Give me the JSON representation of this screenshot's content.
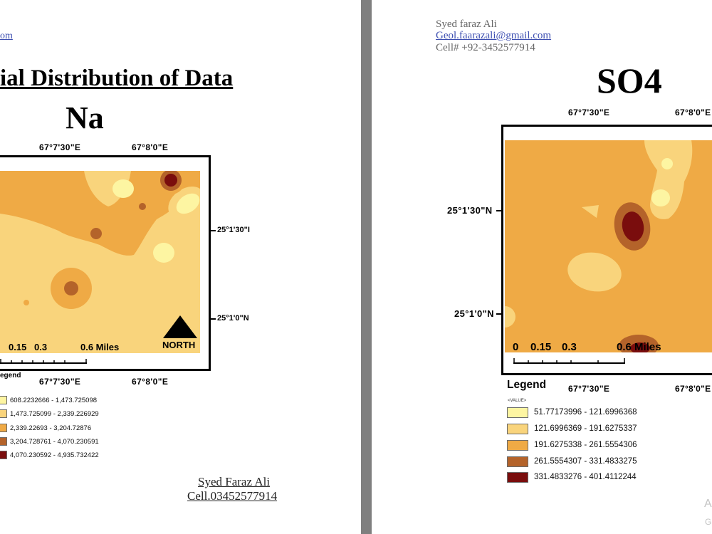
{
  "left_page": {
    "email_fragment": "om",
    "title": "ial Distribution of Data",
    "parameter": "Na",
    "coords": {
      "top_left": "67°7'30\"E",
      "top_right": "67°8'0\"E",
      "side_upper": "25°1'30\"I",
      "side_lower": "25°1'0\"N",
      "bottom_left": "67°7'30\"E",
      "bottom_right": "67°8'0\"E"
    },
    "scale": {
      "t1": "0.15",
      "t2": "0.3",
      "t3": "0.6 Miles"
    },
    "north_label": "NORTH",
    "legend": {
      "title": "egend",
      "items": [
        {
          "label": "608.2232666 - 1,473.725098",
          "color": "#fdf5a2"
        },
        {
          "label": "1,473.725099 - 2,339.226929",
          "color": "#f9d47c"
        },
        {
          "label": "2,339.22693 - 3,204.72876",
          "color": "#efaa45"
        },
        {
          "label": "3,204.728761 - 4,070.230591",
          "color": "#b4632a"
        },
        {
          "label": "4,070.230592 - 4,935.732422",
          "color": "#7a0d0d"
        }
      ]
    },
    "signature": {
      "name": "Syed Faraz Ali",
      "cell": "Cell.03452577914"
    }
  },
  "right_page": {
    "author": {
      "name": "Syed faraz Ali",
      "email": "Geol.faarazali@gmail.com",
      "cell": "Cell# +92-3452577914"
    },
    "parameter": "SO4",
    "coords": {
      "top_left": "67°7'30\"E",
      "top_right": "67°8'0\"E",
      "side_upper": "25°1'30\"N",
      "side_lower": "25°1'0\"N",
      "bottom_left": "67°7'30\"E",
      "bottom_right": "67°8'0\"E"
    },
    "scale": {
      "t0": "0",
      "t1": "0.15",
      "t2": "0.3",
      "t3": "0.6 Miles"
    },
    "legend": {
      "title": "Legend",
      "value_label": "<VALUE>",
      "items": [
        {
          "label": "51.77173996 - 121.6996368",
          "color": "#fdf5a2"
        },
        {
          "label": "121.6996369 - 191.6275337",
          "color": "#f9d47c"
        },
        {
          "label": "191.6275338 - 261.5554306",
          "color": "#efaa45"
        },
        {
          "label": "261.5554307 - 331.4833275",
          "color": "#b4632a"
        },
        {
          "label": "331.4833276 - 401.4112244",
          "color": "#7a0d0d"
        }
      ]
    },
    "watermark": {
      "line1": "A",
      "line2": "G"
    }
  }
}
